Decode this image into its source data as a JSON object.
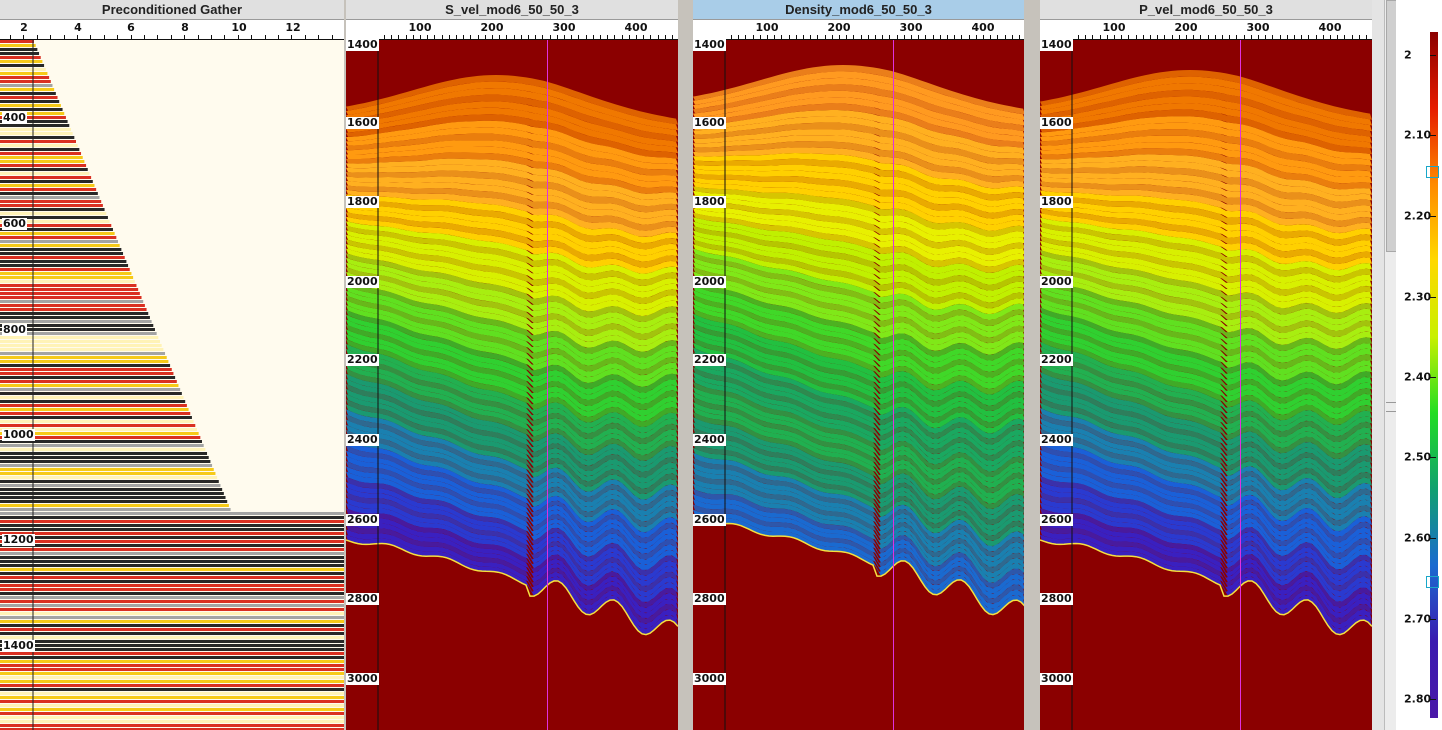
{
  "panels": [
    {
      "id": "gather",
      "title": "Preconditioned Gather",
      "active": false
    },
    {
      "id": "svel",
      "title": "S_vel_mod6_50_50_3",
      "active": false
    },
    {
      "id": "density",
      "title": "Density_mod6_50_50_3",
      "active": true
    },
    {
      "id": "pvel",
      "title": "P_vel_mod6_50_50_3",
      "active": false
    }
  ],
  "gather_axis": {
    "x_ticks": [
      "2",
      "4",
      "6",
      "8",
      "10",
      "12"
    ],
    "y_ticks": [
      "400",
      "600",
      "800",
      "1000",
      "1200",
      "1400"
    ]
  },
  "section_axis": {
    "x_ticks": [
      "100",
      "200",
      "300",
      "400"
    ],
    "y_ticks": [
      "1400",
      "1600",
      "1800",
      "2000",
      "2200",
      "2400",
      "2600",
      "2800",
      "3000"
    ]
  },
  "colorbar": {
    "labels": [
      "2",
      "2.10",
      "2.20",
      "2.30",
      "2.40",
      "2.50",
      "2.60",
      "2.70",
      "2.80"
    ],
    "colors": [
      "#8b0000",
      "#e61c00",
      "#ff8a00",
      "#ffd800",
      "#c8f000",
      "#22dd22",
      "#11a070",
      "#1a6ad0",
      "#3a1ab0",
      "#4a18a8"
    ]
  },
  "colors": {
    "background_layer": "#8b0000",
    "cursor_line": "#e030e0",
    "active_title": "#a9cde8",
    "marker": "#19a7c9"
  }
}
